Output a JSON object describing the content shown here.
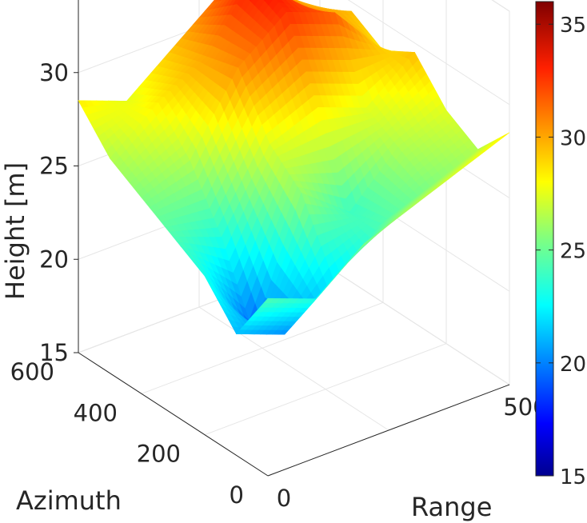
{
  "chart_data": {
    "type": "surface3d",
    "title": "",
    "xlabel": "Range",
    "ylabel": "Azimuth",
    "zlabel": "Height [m]",
    "xlim": [
      0,
      500
    ],
    "ylim": [
      0,
      600
    ],
    "zlim": [
      15,
      35
    ],
    "x_ticks": [
      "0",
      "500"
    ],
    "y_ticks": [
      "0",
      "200",
      "400",
      "600"
    ],
    "z_ticks": [
      "15",
      "20",
      "25",
      "30",
      "35"
    ],
    "grid": true,
    "colormap": "jet",
    "colorbar": {
      "position": "right",
      "range": [
        15,
        36
      ],
      "ticks": [
        "15",
        "20",
        "25",
        "30",
        "35"
      ],
      "colors": [
        "#00008f",
        "#0000ff",
        "#0080ff",
        "#00ffff",
        "#80ff80",
        "#ffff00",
        "#ff8000",
        "#ff0000",
        "#800000"
      ]
    },
    "surface": {
      "grid_x": [
        0,
        100,
        200,
        300,
        400,
        500
      ],
      "grid_y": [
        0,
        100,
        200,
        300,
        400,
        500,
        600
      ],
      "z": [
        [
          24.5,
          23.5,
          25.5,
          26.5,
          27.5,
          28.5
        ],
        [
          21.5,
          20.5,
          22.5,
          24.5,
          25.5,
          26.5
        ],
        [
          23.5,
          19.5,
          26.0,
          24.0,
          26.5,
          27.5
        ],
        [
          24.5,
          23.5,
          27.5,
          28.5,
          27.5,
          29.5
        ],
        [
          25.5,
          26.5,
          30.5,
          32.5,
          31.5,
          28.5
        ],
        [
          26.5,
          28.5,
          30.0,
          33.5,
          30.5,
          29.5
        ],
        [
          28.5,
          27.5,
          29.5,
          31.5,
          30.5,
          28.5
        ]
      ]
    }
  }
}
